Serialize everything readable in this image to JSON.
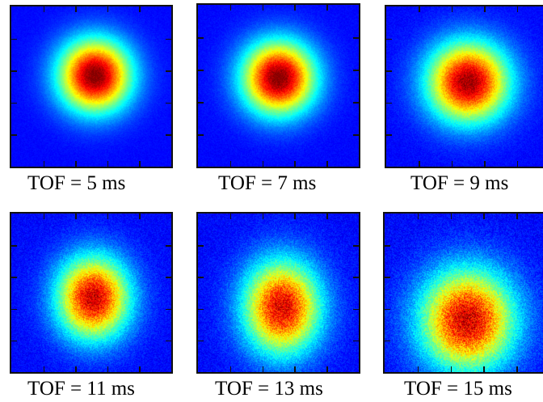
{
  "panels": [
    {
      "label": "TOF = 5 ms"
    },
    {
      "label": "TOF = 7 ms"
    },
    {
      "label": "TOF = 9 ms"
    },
    {
      "label": "TOF = 11 ms"
    },
    {
      "label": "TOF = 13 ms"
    },
    {
      "label": "TOF = 15 ms"
    }
  ],
  "colormap": "jet"
}
